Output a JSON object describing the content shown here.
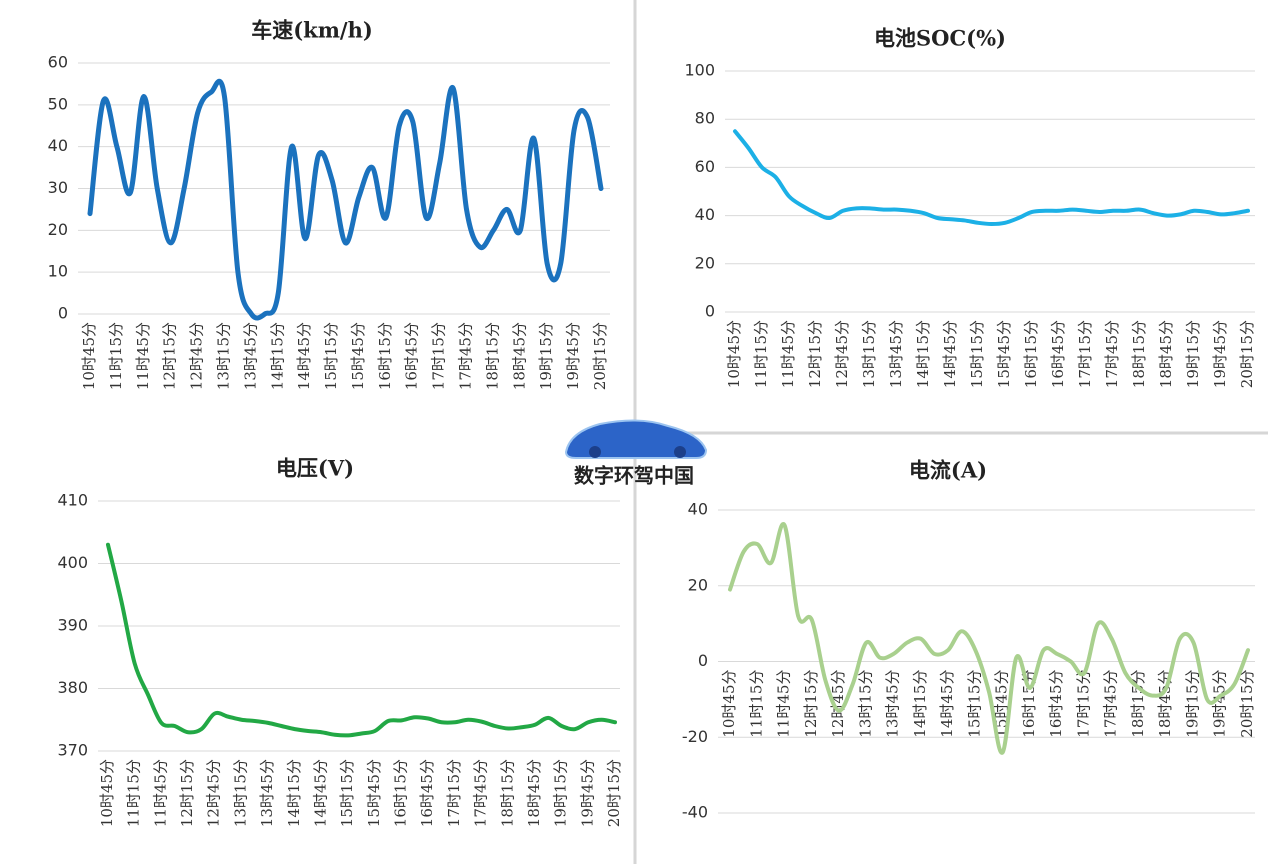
{
  "watermark": "数字环驾中国",
  "chart_data": [
    {
      "type": "line",
      "title": "车速(km/h)",
      "color": "#1b72be",
      "grid": true,
      "categories": [
        "10时45分",
        null,
        "11时15分",
        null,
        "11时45分",
        null,
        "12时15分",
        null,
        "12时45分",
        null,
        "13时15分",
        null,
        "13时45分",
        null,
        "14时15分",
        null,
        "14时45分",
        null,
        "15时15分",
        null,
        "15时45分",
        null,
        "16时15分",
        null,
        "16时45分",
        null,
        "17时15分",
        null,
        "17时45分",
        null,
        "18时15分",
        null,
        "18时45分",
        null,
        "19时15分",
        null,
        "19时45分",
        null,
        "20时15分"
      ],
      "values": [
        24,
        51,
        40,
        29,
        52,
        30,
        17,
        30,
        48,
        53,
        52,
        10,
        0,
        0,
        5,
        40,
        18,
        38,
        32,
        17,
        28,
        35,
        23,
        45,
        46,
        23,
        36,
        54,
        25,
        16,
        20,
        25,
        20,
        42,
        12,
        12,
        44,
        47,
        30
      ],
      "ylim": [
        0,
        60
      ],
      "yticks": [
        0,
        10,
        20,
        30,
        40,
        50,
        60
      ]
    },
    {
      "type": "line",
      "title": "电池SOC(%)",
      "color": "#1cb0e6",
      "grid": true,
      "categories": [
        "10时45分",
        null,
        "11时15分",
        null,
        "11时45分",
        null,
        "12时15分",
        null,
        "12时45分",
        null,
        "13时15分",
        null,
        "13时45分",
        null,
        "14时15分",
        null,
        "14时45分",
        null,
        "15时15分",
        null,
        "15时45分",
        null,
        "16时15分",
        null,
        "16时45分",
        null,
        "17时15分",
        null,
        "17时45分",
        null,
        "18时15分",
        null,
        "18时45分",
        null,
        "19时15分",
        null,
        "19时45分",
        null,
        "20时15分"
      ],
      "values": [
        75,
        68,
        60,
        56,
        48,
        44,
        41,
        39,
        42,
        43,
        43,
        42.5,
        42.5,
        42,
        41,
        39,
        38.5,
        38,
        37,
        36.5,
        37,
        39,
        41.5,
        42,
        42,
        42.5,
        42,
        41.5,
        42,
        42,
        42.5,
        41,
        40,
        40.5,
        42,
        41.5,
        40.5,
        41,
        42
      ],
      "ylim": [
        0,
        100
      ],
      "yticks": [
        0,
        20,
        40,
        60,
        80,
        100
      ]
    },
    {
      "type": "line",
      "title": "电压(V)",
      "color": "#22a845",
      "grid": true,
      "categories": [
        "10时45分",
        null,
        "11时15分",
        null,
        "11时45分",
        null,
        "12时15分",
        null,
        "12时45分",
        null,
        "13时15分",
        null,
        "13时45分",
        null,
        "14时15分",
        null,
        "14时45分",
        null,
        "15时15分",
        null,
        "15时45分",
        null,
        "16时15分",
        null,
        "16时45分",
        null,
        "17时15分",
        null,
        "17时45分",
        null,
        "18时15分",
        null,
        "18时45分",
        null,
        "19时15分",
        null,
        "19时45分",
        null,
        "20时15分"
      ],
      "values": [
        403,
        394,
        384,
        379,
        374.5,
        374,
        373,
        373.5,
        376,
        375.5,
        375,
        374.8,
        374.5,
        374,
        373.5,
        373.2,
        373,
        372.6,
        372.5,
        372.8,
        373.2,
        374.8,
        374.9,
        375.4,
        375.2,
        374.6,
        374.6,
        375,
        374.7,
        374,
        373.6,
        373.8,
        374.2,
        375.3,
        374,
        373.5,
        374.6,
        375,
        374.6
      ],
      "ylim": [
        370,
        410
      ],
      "yticks": [
        370,
        380,
        390,
        400,
        410
      ]
    },
    {
      "type": "line",
      "title": "电流(A)",
      "color": "#a9d08e",
      "grid": true,
      "categories": [
        "10时45分",
        null,
        "11时15分",
        null,
        "11时45分",
        null,
        "12时15分",
        null,
        "12时45分",
        null,
        "13时15分",
        null,
        "13时45分",
        null,
        "14时15分",
        null,
        "14时45分",
        null,
        "15时15分",
        null,
        "15时45分",
        null,
        "16时15分",
        null,
        "16时45分",
        null,
        "17时15分",
        null,
        "17时45分",
        null,
        "18时15分",
        null,
        "18时45分",
        null,
        "19时15分",
        null,
        "19时45分",
        null,
        "20时15分"
      ],
      "values": [
        19,
        29,
        31,
        26,
        36,
        12,
        11,
        -5,
        -13,
        -6,
        5,
        1,
        2,
        5,
        6,
        2,
        3,
        8,
        3,
        -8,
        -24,
        1,
        -7,
        3,
        2,
        0,
        -3,
        10,
        6,
        -3,
        -7,
        -9,
        -7,
        6,
        5,
        -10,
        -9,
        -6,
        3
      ],
      "ylim": [
        -40,
        40
      ],
      "yticks": [
        -40,
        -20,
        0,
        20,
        40
      ]
    }
  ]
}
